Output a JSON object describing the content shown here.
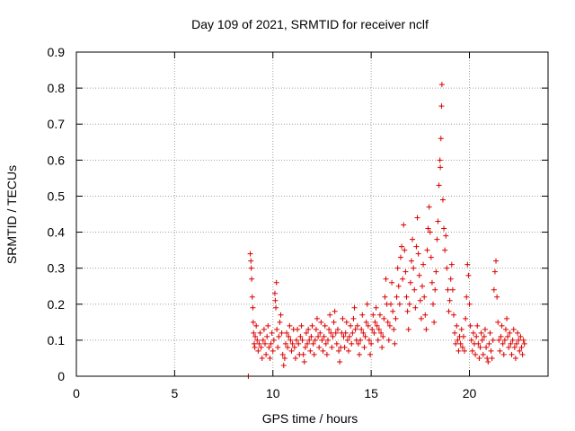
{
  "chart_data": {
    "type": "scatter",
    "title": "Day 109 of 2021, SRMTID for receiver nclf",
    "xlabel": "GPS time / hours",
    "ylabel": "SRMTID / TECUs",
    "xlim": [
      0,
      24
    ],
    "ylim": [
      0,
      0.9
    ],
    "xticks": [
      0,
      5,
      10,
      15,
      20
    ],
    "xtick_labels": [
      "0",
      "5",
      "10",
      "15",
      "20"
    ],
    "yticks": [
      0,
      0.1,
      0.2,
      0.3,
      0.4,
      0.5,
      0.6,
      0.7,
      0.8,
      0.9
    ],
    "ytick_labels": [
      "0",
      "0.1",
      "0.2",
      "0.3",
      "0.4",
      "0.5",
      "0.6",
      "0.7",
      "0.8",
      "0.9"
    ],
    "grid": true,
    "marker": "+",
    "color": "#dd0000",
    "series": [
      {
        "name": "SRMTID",
        "points": [
          [
            8.75,
            0.0
          ],
          [
            8.85,
            0.34
          ],
          [
            8.88,
            0.32
          ],
          [
            8.9,
            0.3
          ],
          [
            8.92,
            0.27
          ],
          [
            8.95,
            0.22
          ],
          [
            8.98,
            0.19
          ],
          [
            9.0,
            0.15
          ],
          [
            9.02,
            0.12
          ],
          [
            9.05,
            0.09
          ],
          [
            9.08,
            0.08
          ],
          [
            9.1,
            0.11
          ],
          [
            9.15,
            0.14
          ],
          [
            9.2,
            0.1
          ],
          [
            9.25,
            0.07
          ],
          [
            9.3,
            0.09
          ],
          [
            9.35,
            0.12
          ],
          [
            9.4,
            0.08
          ],
          [
            9.45,
            0.05
          ],
          [
            9.5,
            0.1
          ],
          [
            9.55,
            0.13
          ],
          [
            9.6,
            0.09
          ],
          [
            9.65,
            0.06
          ],
          [
            9.7,
            0.11
          ],
          [
            9.75,
            0.14
          ],
          [
            9.8,
            0.08
          ],
          [
            9.85,
            0.05
          ],
          [
            9.9,
            0.09
          ],
          [
            9.95,
            0.12
          ],
          [
            10.0,
            0.07
          ],
          [
            10.05,
            0.1
          ],
          [
            10.1,
            0.23
          ],
          [
            10.12,
            0.21
          ],
          [
            10.15,
            0.19
          ],
          [
            10.18,
            0.26
          ],
          [
            10.2,
            0.13
          ],
          [
            10.25,
            0.08
          ],
          [
            10.3,
            0.11
          ],
          [
            10.35,
            0.15
          ],
          [
            10.4,
            0.17
          ],
          [
            10.45,
            0.12
          ],
          [
            10.5,
            0.06
          ],
          [
            10.55,
            0.03
          ],
          [
            10.6,
            0.05
          ],
          [
            10.65,
            0.09
          ],
          [
            10.7,
            0.12
          ],
          [
            10.75,
            0.08
          ],
          [
            10.8,
            0.11
          ],
          [
            10.85,
            0.14
          ],
          [
            10.9,
            0.1
          ],
          [
            10.95,
            0.07
          ],
          [
            11.0,
            0.09
          ],
          [
            11.05,
            0.13
          ],
          [
            11.1,
            0.08
          ],
          [
            11.15,
            0.05
          ],
          [
            11.2,
            0.1
          ],
          [
            11.25,
            0.13
          ],
          [
            11.3,
            0.09
          ],
          [
            11.35,
            0.06
          ],
          [
            11.4,
            0.11
          ],
          [
            11.45,
            0.14
          ],
          [
            11.5,
            0.1
          ],
          [
            11.55,
            0.06
          ],
          [
            11.6,
            0.04
          ],
          [
            11.65,
            0.08
          ],
          [
            11.7,
            0.12
          ],
          [
            11.75,
            0.09
          ],
          [
            11.8,
            0.13
          ],
          [
            11.85,
            0.1
          ],
          [
            11.9,
            0.07
          ],
          [
            11.95,
            0.11
          ],
          [
            12.0,
            0.14
          ],
          [
            12.05,
            0.09
          ],
          [
            12.1,
            0.06
          ],
          [
            12.15,
            0.1
          ],
          [
            12.2,
            0.13
          ],
          [
            12.25,
            0.16
          ],
          [
            12.3,
            0.11
          ],
          [
            12.35,
            0.08
          ],
          [
            12.4,
            0.12
          ],
          [
            12.45,
            0.15
          ],
          [
            12.5,
            0.1
          ],
          [
            12.55,
            0.07
          ],
          [
            12.6,
            0.11
          ],
          [
            12.65,
            0.14
          ],
          [
            12.7,
            0.09
          ],
          [
            12.75,
            0.06
          ],
          [
            12.8,
            0.1
          ],
          [
            12.85,
            0.13
          ],
          [
            12.9,
            0.17
          ],
          [
            12.95,
            0.12
          ],
          [
            13.0,
            0.08
          ],
          [
            13.05,
            0.11
          ],
          [
            13.1,
            0.15
          ],
          [
            13.15,
            0.18
          ],
          [
            13.2,
            0.12
          ],
          [
            13.25,
            0.09
          ],
          [
            13.3,
            0.13
          ],
          [
            13.35,
            0.07
          ],
          [
            13.4,
            0.04
          ],
          [
            13.45,
            0.08
          ],
          [
            13.5,
            0.12
          ],
          [
            13.55,
            0.16
          ],
          [
            13.6,
            0.11
          ],
          [
            13.65,
            0.08
          ],
          [
            13.7,
            0.12
          ],
          [
            13.75,
            0.15
          ],
          [
            13.8,
            0.1
          ],
          [
            13.85,
            0.07
          ],
          [
            13.9,
            0.11
          ],
          [
            13.95,
            0.14
          ],
          [
            14.0,
            0.09
          ],
          [
            14.05,
            0.12
          ],
          [
            14.1,
            0.16
          ],
          [
            14.15,
            0.19
          ],
          [
            14.2,
            0.13
          ],
          [
            14.25,
            0.1
          ],
          [
            14.3,
            0.14
          ],
          [
            14.35,
            0.09
          ],
          [
            14.4,
            0.06
          ],
          [
            14.45,
            0.1
          ],
          [
            14.5,
            0.13
          ],
          [
            14.55,
            0.17
          ],
          [
            14.6,
            0.12
          ],
          [
            14.65,
            0.08
          ],
          [
            14.7,
            0.11
          ],
          [
            14.75,
            0.15
          ],
          [
            14.8,
            0.2
          ],
          [
            14.85,
            0.14
          ],
          [
            14.9,
            0.1
          ],
          [
            14.95,
            0.06
          ],
          [
            15.0,
            0.09
          ],
          [
            15.05,
            0.13
          ],
          [
            15.1,
            0.17
          ],
          [
            15.15,
            0.12
          ],
          [
            15.2,
            0.15
          ],
          [
            15.25,
            0.19
          ],
          [
            15.3,
            0.14
          ],
          [
            15.35,
            0.1
          ],
          [
            15.4,
            0.13
          ],
          [
            15.45,
            0.17
          ],
          [
            15.5,
            0.12
          ],
          [
            15.55,
            0.08
          ],
          [
            15.6,
            0.11
          ],
          [
            15.65,
            0.16
          ],
          [
            15.7,
            0.22
          ],
          [
            15.75,
            0.27
          ],
          [
            15.8,
            0.2
          ],
          [
            15.85,
            0.15
          ],
          [
            15.9,
            0.1
          ],
          [
            15.95,
            0.14
          ],
          [
            16.0,
            0.2
          ],
          [
            16.05,
            0.26
          ],
          [
            16.1,
            0.18
          ],
          [
            16.15,
            0.13
          ],
          [
            16.2,
            0.09
          ],
          [
            16.25,
            0.16
          ],
          [
            16.3,
            0.22
          ],
          [
            16.35,
            0.3
          ],
          [
            16.4,
            0.25
          ],
          [
            16.45,
            0.2
          ],
          [
            16.5,
            0.33
          ],
          [
            16.55,
            0.36
          ],
          [
            16.6,
            0.27
          ],
          [
            16.65,
            0.42
          ],
          [
            16.7,
            0.35
          ],
          [
            16.75,
            0.29
          ],
          [
            16.8,
            0.22
          ],
          [
            16.85,
            0.18
          ],
          [
            16.9,
            0.13
          ],
          [
            16.95,
            0.2
          ],
          [
            17.0,
            0.26
          ],
          [
            17.05,
            0.32
          ],
          [
            17.1,
            0.38
          ],
          [
            17.15,
            0.3
          ],
          [
            17.2,
            0.24
          ],
          [
            17.25,
            0.19
          ],
          [
            17.3,
            0.36
          ],
          [
            17.35,
            0.44
          ],
          [
            17.4,
            0.34
          ],
          [
            17.45,
            0.28
          ],
          [
            17.5,
            0.21
          ],
          [
            17.55,
            0.16
          ],
          [
            17.6,
            0.25
          ],
          [
            17.65,
            0.31
          ],
          [
            17.7,
            0.22
          ],
          [
            17.75,
            0.17
          ],
          [
            17.8,
            0.13
          ],
          [
            17.85,
            0.35
          ],
          [
            17.9,
            0.41
          ],
          [
            17.95,
            0.47
          ],
          [
            18.0,
            0.4
          ],
          [
            18.05,
            0.33
          ],
          [
            18.1,
            0.26
          ],
          [
            18.15,
            0.2
          ],
          [
            18.2,
            0.15
          ],
          [
            18.25,
            0.24
          ],
          [
            18.3,
            0.29
          ],
          [
            18.35,
            0.38
          ],
          [
            18.4,
            0.43
          ],
          [
            18.45,
            0.53
          ],
          [
            18.5,
            0.6
          ],
          [
            18.52,
            0.58
          ],
          [
            18.55,
            0.66
          ],
          [
            18.58,
            0.75
          ],
          [
            18.6,
            0.81
          ],
          [
            18.65,
            0.49
          ],
          [
            18.7,
            0.41
          ],
          [
            18.75,
            0.35
          ],
          [
            18.8,
            0.39
          ],
          [
            18.85,
            0.3
          ],
          [
            18.9,
            0.24
          ],
          [
            18.95,
            0.18
          ],
          [
            19.0,
            0.21
          ],
          [
            19.05,
            0.27
          ],
          [
            19.1,
            0.31
          ],
          [
            19.15,
            0.24
          ],
          [
            19.2,
            0.17
          ],
          [
            19.25,
            0.12
          ],
          [
            19.3,
            0.09
          ],
          [
            19.35,
            0.14
          ],
          [
            19.4,
            0.1
          ],
          [
            19.45,
            0.07
          ],
          [
            19.5,
            0.11
          ],
          [
            19.55,
            0.09
          ],
          [
            19.6,
            0.13
          ],
          [
            19.65,
            0.08
          ],
          [
            19.7,
            0.11
          ],
          [
            19.75,
            0.07
          ],
          [
            19.8,
            0.16
          ],
          [
            19.85,
            0.22
          ],
          [
            19.9,
            0.31
          ],
          [
            19.95,
            0.28
          ],
          [
            20.0,
            0.2
          ],
          [
            20.05,
            0.14
          ],
          [
            20.1,
            0.1
          ],
          [
            20.15,
            0.07
          ],
          [
            20.2,
            0.12
          ],
          [
            20.25,
            0.09
          ],
          [
            20.3,
            0.06
          ],
          [
            20.35,
            0.11
          ],
          [
            20.4,
            0.14
          ],
          [
            20.45,
            0.09
          ],
          [
            20.5,
            0.05
          ],
          [
            20.55,
            0.08
          ],
          [
            20.6,
            0.12
          ],
          [
            20.65,
            0.1
          ],
          [
            20.7,
            0.06
          ],
          [
            20.75,
            0.11
          ],
          [
            20.8,
            0.13
          ],
          [
            20.85,
            0.08
          ],
          [
            20.9,
            0.05
          ],
          [
            20.95,
            0.04
          ],
          [
            21.0,
            0.09
          ],
          [
            21.05,
            0.12
          ],
          [
            21.1,
            0.07
          ],
          [
            21.15,
            0.05
          ],
          [
            21.2,
            0.1
          ],
          [
            21.25,
            0.24
          ],
          [
            21.3,
            0.29
          ],
          [
            21.35,
            0.32
          ],
          [
            21.4,
            0.22
          ],
          [
            21.45,
            0.15
          ],
          [
            21.5,
            0.1
          ],
          [
            21.55,
            0.07
          ],
          [
            21.6,
            0.11
          ],
          [
            21.65,
            0.14
          ],
          [
            21.7,
            0.09
          ],
          [
            21.75,
            0.06
          ],
          [
            21.8,
            0.1
          ],
          [
            21.85,
            0.13
          ],
          [
            21.9,
            0.16
          ],
          [
            21.95,
            0.11
          ],
          [
            22.0,
            0.08
          ],
          [
            22.05,
            0.12
          ],
          [
            22.1,
            0.09
          ],
          [
            22.15,
            0.06
          ],
          [
            22.2,
            0.1
          ],
          [
            22.25,
            0.13
          ],
          [
            22.3,
            0.08
          ],
          [
            22.35,
            0.05
          ],
          [
            22.4,
            0.09
          ],
          [
            22.45,
            0.12
          ],
          [
            22.5,
            0.1
          ],
          [
            22.55,
            0.07
          ],
          [
            22.6,
            0.11
          ],
          [
            22.65,
            0.08
          ],
          [
            22.7,
            0.06
          ],
          [
            22.75,
            0.1
          ],
          [
            22.8,
            0.09
          ]
        ]
      }
    ]
  }
}
